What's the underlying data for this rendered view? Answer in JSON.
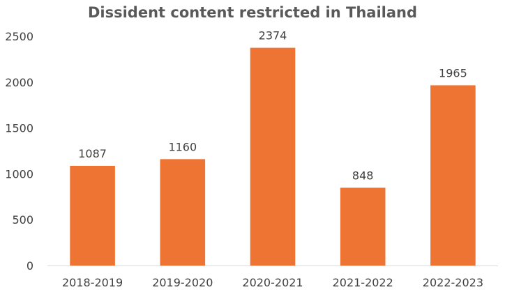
{
  "colors": {
    "bar": "#ED7433",
    "axis": "#D9D9D9",
    "text": "#404040",
    "title": "#595959"
  },
  "chart_data": {
    "type": "bar",
    "title": "Dissident content restricted in Thailand",
    "xlabel": "",
    "ylabel": "",
    "categories": [
      "2018-2019",
      "2019-2020",
      "2020-2021",
      "2021-2022",
      "2022-2023"
    ],
    "values": [
      1087,
      1160,
      2374,
      848,
      1965
    ],
    "data_labels": [
      "1087",
      "1160",
      "2374",
      "848",
      "1965"
    ],
    "ylim": [
      0,
      2500
    ],
    "yticks": [
      0,
      500,
      1000,
      1500,
      2000,
      2500
    ],
    "ytick_labels": [
      "0",
      "500",
      "1000",
      "1500",
      "2000",
      "2500"
    ],
    "grid": false,
    "legend": "none"
  }
}
